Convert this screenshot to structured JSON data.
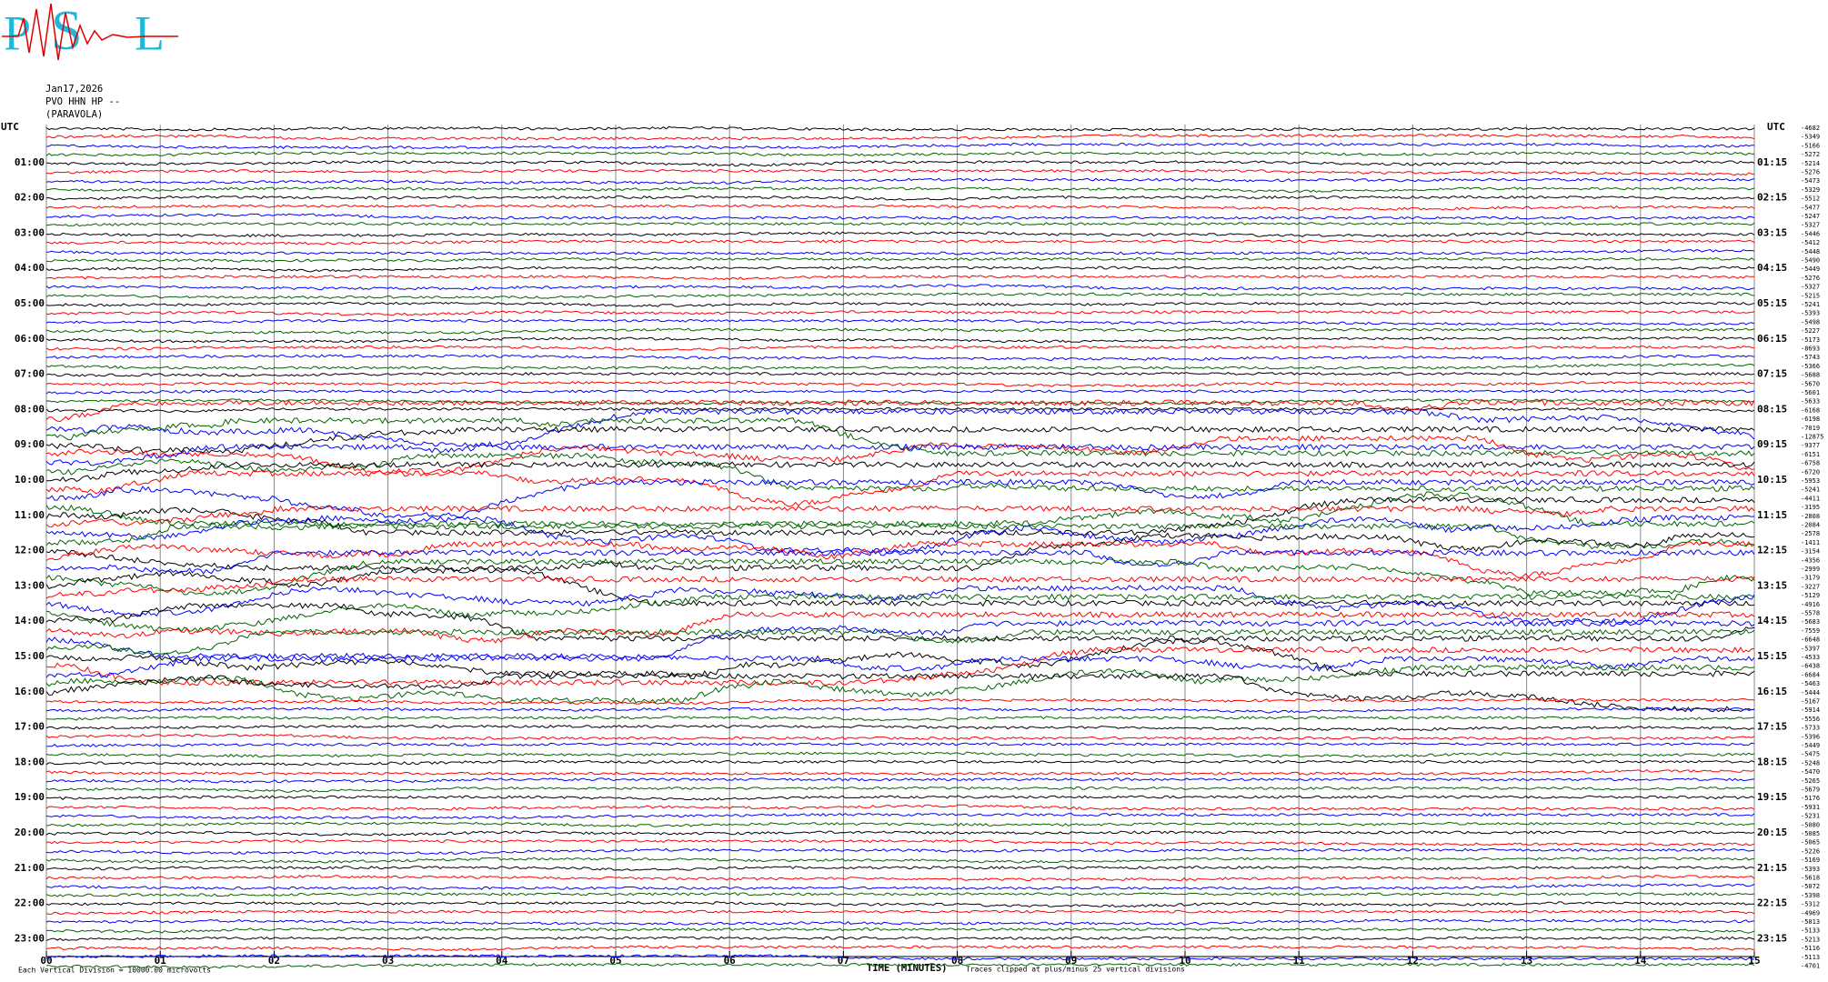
{
  "chart_data": {
    "type": "helicorder",
    "logo": [
      "P",
      "S",
      "L"
    ],
    "header": [
      "Jan17,2026",
      "PVO HHN HP --",
      "(PARAVOLA)"
    ],
    "left_labels": [
      "UTC",
      "01:00",
      "02:00",
      "03:00",
      "04:00",
      "05:00",
      "06:00",
      "07:00",
      "08:00",
      "09:00",
      "10:00",
      "11:00",
      "12:00",
      "13:00",
      "14:00",
      "15:00",
      "16:00",
      "17:00",
      "18:00",
      "19:00",
      "20:00",
      "21:00",
      "22:00",
      "23:00"
    ],
    "right_labels": [
      "UTC",
      "01:15",
      "02:15",
      "03:15",
      "04:15",
      "05:15",
      "06:15",
      "07:15",
      "08:15",
      "09:15",
      "10:15",
      "11:15",
      "12:15",
      "13:15",
      "14:15",
      "15:15",
      "16:15",
      "17:15",
      "18:15",
      "19:15",
      "20:15",
      "21:15",
      "22:15",
      "23:15"
    ],
    "offsets": [
      -4682,
      -5349,
      -5166,
      -5272,
      -5214,
      -5276,
      -5473,
      -5329,
      -5512,
      -5477,
      -5247,
      -5327,
      -5446,
      -5412,
      -5448,
      -5490,
      -5449,
      -5276,
      -5327,
      -5215,
      -5241,
      -5393,
      -5498,
      -5227,
      -5173,
      -8693,
      -5743,
      -5366,
      -5688,
      -5670,
      -5601,
      -5633,
      -6168,
      -6198,
      -7019,
      -12875,
      -9377,
      -6151,
      -6758,
      -6720,
      -5953,
      -5241,
      -4411,
      -3195,
      -2808,
      -2084,
      -2578,
      -1411,
      -3154,
      -4356,
      -2999,
      -3179,
      -3227,
      -5129,
      -4916,
      -5578,
      -5683,
      -7559,
      -6648,
      -5397,
      -4533,
      -6438,
      -6684,
      -5463,
      -5444,
      -5167,
      -5914,
      -5556,
      -5733,
      -5396,
      -5449,
      -5475,
      -5248,
      -5470,
      -5265,
      -5679,
      -5176,
      -5931,
      -5231,
      -5080,
      -5085,
      -5065,
      -5226,
      -5169,
      -5393,
      -5618,
      -5072,
      -5398,
      -5312,
      -4969,
      -5013,
      -5133,
      -5213,
      -5116,
      -5113,
      -4701
    ],
    "colors": [
      "#000000",
      "#ff0000",
      "#0000ff",
      "#006400"
    ],
    "xlim": [
      0,
      15
    ],
    "xticks": [
      {
        "value": 0,
        "label": "00"
      },
      {
        "value": 1,
        "label": "01"
      },
      {
        "value": 2,
        "label": "02"
      },
      {
        "value": 3,
        "label": "03"
      },
      {
        "value": 4,
        "label": "04"
      },
      {
        "value": 5,
        "label": "05"
      },
      {
        "value": 6,
        "label": "06"
      },
      {
        "value": 7,
        "label": "07"
      },
      {
        "value": 8,
        "label": "08"
      },
      {
        "value": 9,
        "label": "09"
      },
      {
        "value": 10,
        "label": "10"
      },
      {
        "value": 11,
        "label": "11"
      },
      {
        "value": 12,
        "label": "12"
      },
      {
        "value": 13,
        "label": "13"
      },
      {
        "value": 14,
        "label": "14"
      },
      {
        "value": 15,
        "label": "15"
      }
    ],
    "xlabel": "TIME (MINUTES)",
    "scale_note": "Each Vertical Division = 10000.00 microvolts",
    "clip_note": "Traces clipped at plus/minus 25 vertical divisions",
    "grid": true
  }
}
